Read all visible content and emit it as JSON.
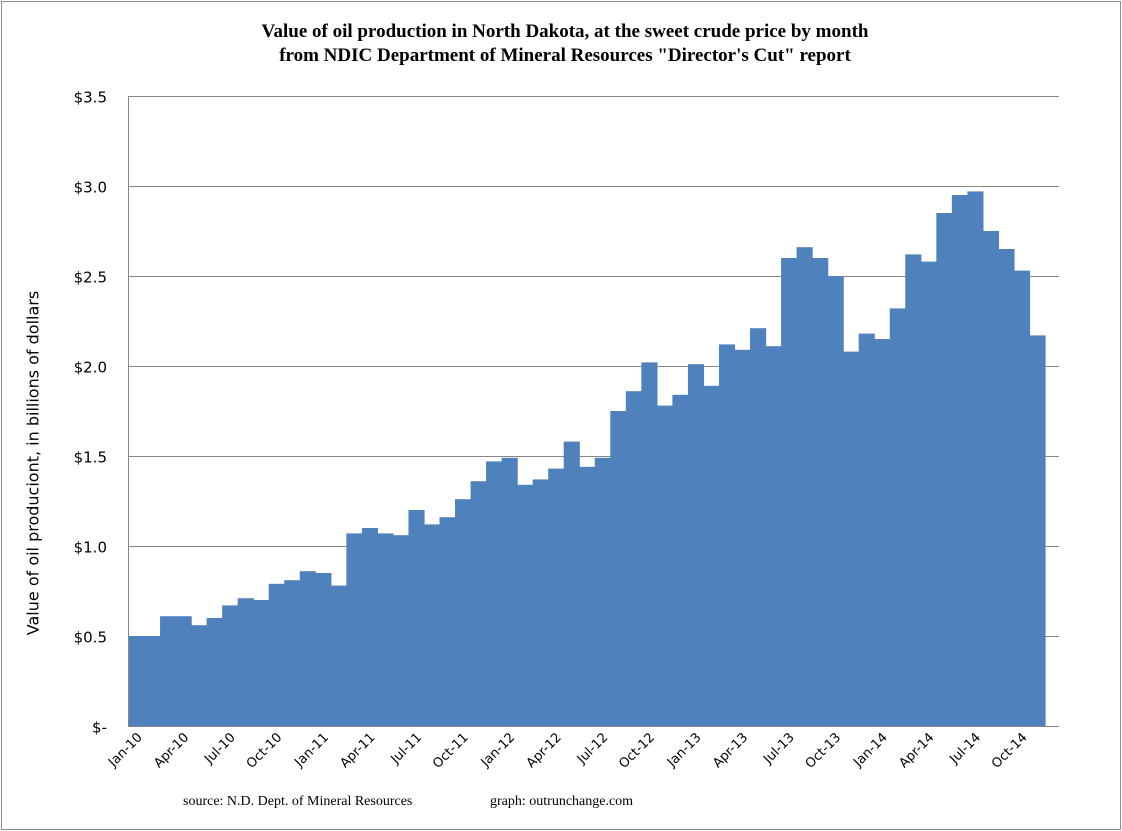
{
  "chart_data": {
    "type": "bar",
    "title_lines": [
      "Value of oil production in North Dakota, at the sweet crude price by month",
      "from NDIC Department of Mineral Resources \"Director's Cut\" report"
    ],
    "xlabel": "",
    "ylabel": "Value of oil produciont, in billions of dollars",
    "ylim": [
      0,
      3.5
    ],
    "y_ticks": [
      0,
      0.5,
      1.0,
      1.5,
      2.0,
      2.5,
      3.0,
      3.5
    ],
    "y_tick_labels": [
      "$-",
      "$0.5",
      "$1.0",
      "$1.5",
      "$2.0",
      "$2.5",
      "$3.0",
      "$3.5"
    ],
    "x_tick_labels": [
      "Jan-10",
      "Apr-10",
      "Jul-10",
      "Oct-10",
      "Jan-11",
      "Apr-11",
      "Jul-11",
      "Oct-11",
      "Jan-12",
      "Apr-12",
      "Jul-12",
      "Oct-12",
      "Jan-13",
      "Apr-13",
      "Jul-13",
      "Oct-13",
      "Jan-14",
      "Apr-14",
      "Jul-14",
      "Oct-14"
    ],
    "categories": [
      "Jan-10",
      "Feb-10",
      "Mar-10",
      "Apr-10",
      "May-10",
      "Jun-10",
      "Jul-10",
      "Aug-10",
      "Sep-10",
      "Oct-10",
      "Nov-10",
      "Dec-10",
      "Jan-11",
      "Feb-11",
      "Mar-11",
      "Apr-11",
      "May-11",
      "Jun-11",
      "Jul-11",
      "Aug-11",
      "Sep-11",
      "Oct-11",
      "Nov-11",
      "Dec-11",
      "Jan-12",
      "Feb-12",
      "Mar-12",
      "Apr-12",
      "May-12",
      "Jun-12",
      "Jul-12",
      "Aug-12",
      "Sep-12",
      "Oct-12",
      "Nov-12",
      "Dec-12",
      "Jan-13",
      "Feb-13",
      "Mar-13",
      "Apr-13",
      "May-13",
      "Jun-13",
      "Jul-13",
      "Aug-13",
      "Sep-13",
      "Oct-13",
      "Nov-13",
      "Dec-13",
      "Jan-14",
      "Feb-14",
      "Mar-14",
      "Apr-14",
      "May-14",
      "Jun-14",
      "Jul-14",
      "Aug-14",
      "Sep-14",
      "Oct-14",
      "Nov-14"
    ],
    "values": [
      0.5,
      0.5,
      0.61,
      0.61,
      0.56,
      0.6,
      0.67,
      0.71,
      0.7,
      0.79,
      0.81,
      0.86,
      0.85,
      0.78,
      1.07,
      1.1,
      1.07,
      1.06,
      1.2,
      1.12,
      1.16,
      1.26,
      1.36,
      1.47,
      1.49,
      1.34,
      1.37,
      1.43,
      1.58,
      1.44,
      1.49,
      1.75,
      1.86,
      2.02,
      1.78,
      1.84,
      2.01,
      1.89,
      2.12,
      2.09,
      2.21,
      2.11,
      2.6,
      2.66,
      2.6,
      2.5,
      2.08,
      2.18,
      2.15,
      2.32,
      2.62,
      2.58,
      2.85,
      2.95,
      2.97,
      2.75,
      2.65,
      2.53,
      2.17
    ],
    "bar_color": "#4f81bd",
    "grid": true,
    "grid_color": "#878787"
  },
  "footer": {
    "source": "source: N.D. Dept. of Mineral Resources",
    "graph": "graph: outrunchange.com"
  }
}
